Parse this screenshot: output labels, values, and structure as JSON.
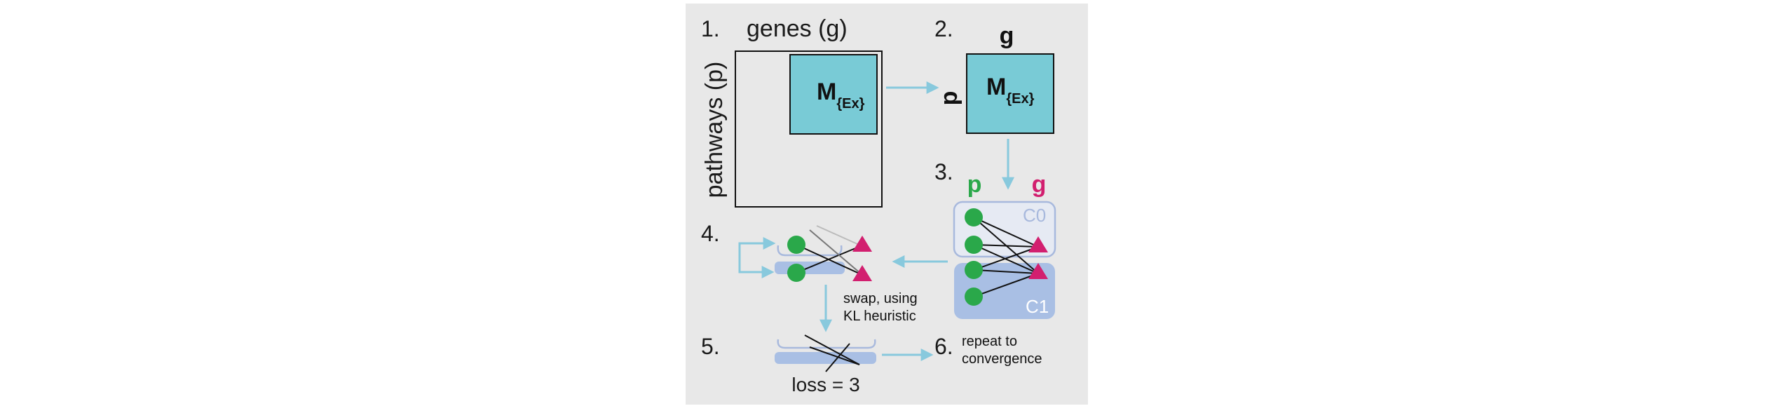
{
  "steps": {
    "s1": "1.",
    "s2": "2.",
    "s3": "3.",
    "s4": "4.",
    "s5": "5.",
    "s6": "6."
  },
  "matrix": {
    "genes_label": "genes (g)",
    "pathways_label": "pathways (p)",
    "sub_main": "M",
    "sub_subscript": "{Ex}"
  },
  "submatrix": {
    "row_label": "p",
    "col_label": "g",
    "main": "M",
    "subscript": "{Ex}"
  },
  "bipartite": {
    "p_label": "p",
    "g_label": "g",
    "cluster0": "C0",
    "cluster1": "C1"
  },
  "swap": {
    "line1": "swap, using",
    "line2": "KL heuristic"
  },
  "loss": "loss = 3",
  "repeat": {
    "line1": "repeat to",
    "line2": "convergence"
  },
  "colors": {
    "panel_bg": "#e8e8e8",
    "matrix_fill": "#79cbd6",
    "arrow": "#88c9dd",
    "pathway_green": "#2aa84a",
    "gene_magenta": "#d21f6f",
    "cluster0_fill": "#e6eaf3",
    "cluster0_stroke": "#a8b9dd",
    "cluster1_fill": "#a9bfe4"
  }
}
